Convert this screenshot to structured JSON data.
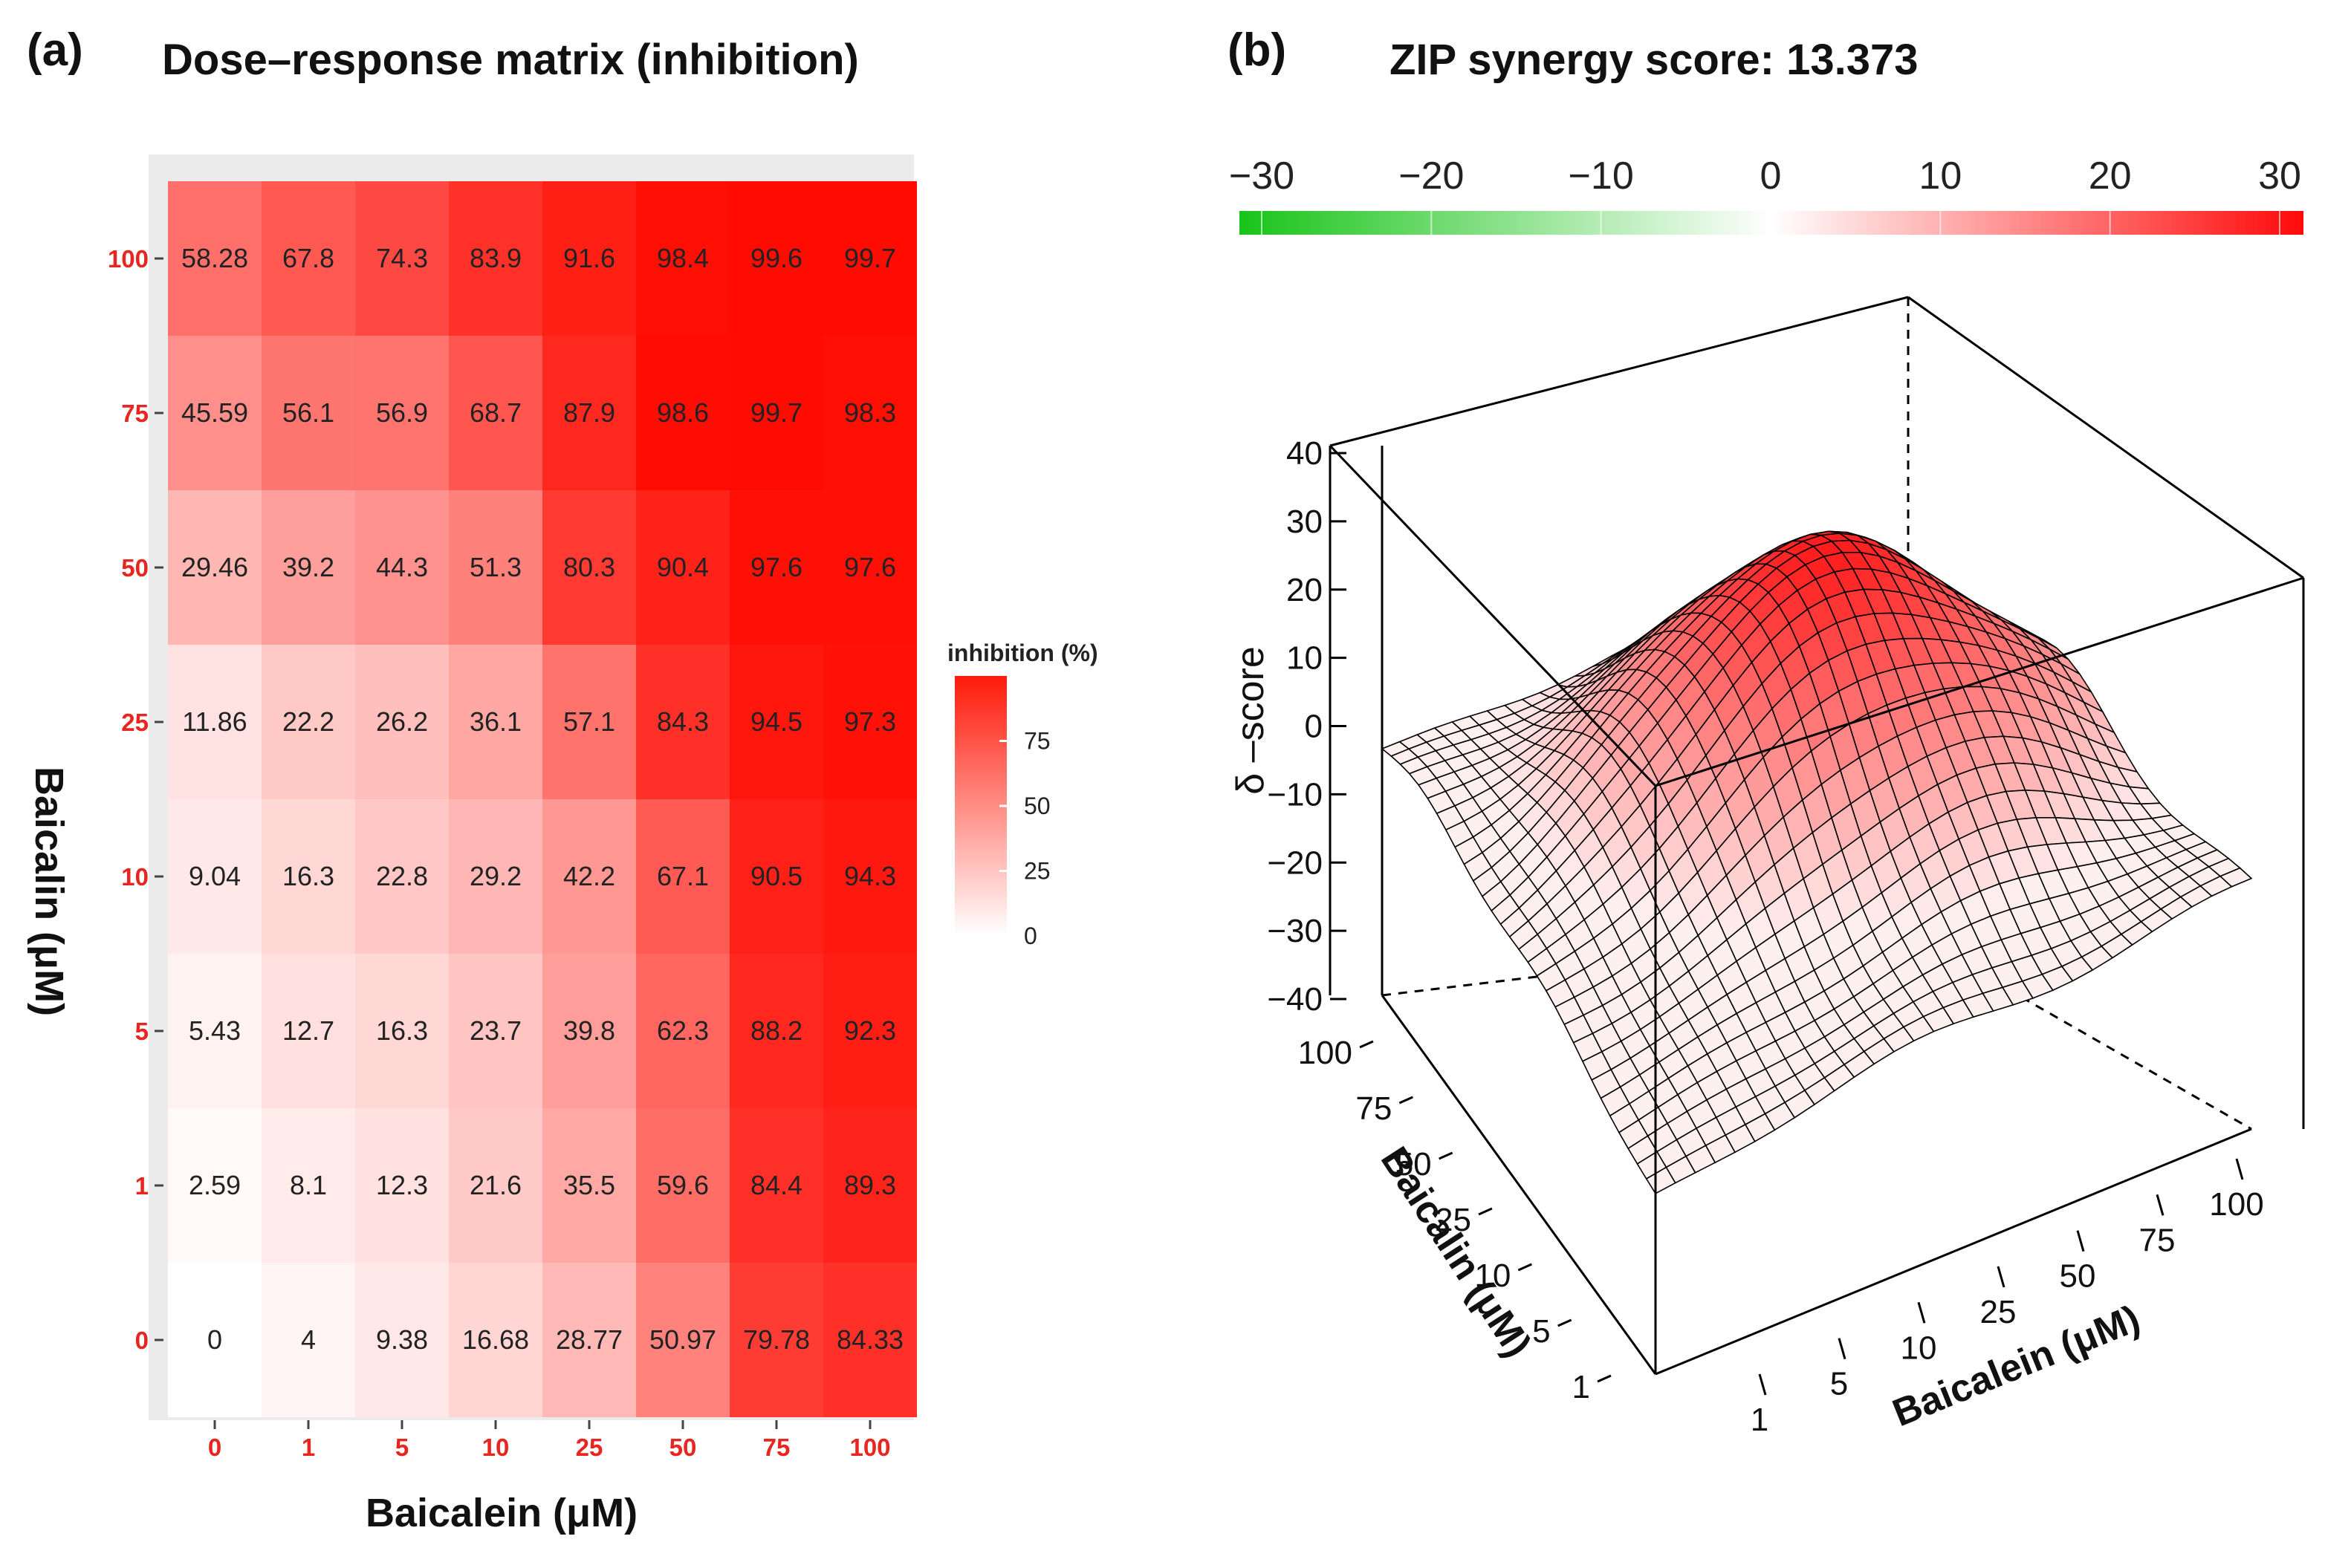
{
  "panels": {
    "a": {
      "letter": "(a)",
      "title": "Dose–response matrix (inhibition)"
    },
    "b": {
      "letter": "(b)",
      "title": "ZIP synergy score: 13.373"
    }
  },
  "colors": {
    "high": "#ff0000",
    "low": "#ffffff",
    "synergy": "#ff1a1a",
    "antagonism": "#19c419",
    "tick_label": "#e8251e"
  },
  "chart_data": [
    {
      "type": "heatmap",
      "title": "Dose–response matrix (inhibition)",
      "xlabel": "Baicalein (μM)",
      "ylabel": "Baicalin (μM)",
      "x_categories": [
        "0",
        "1",
        "5",
        "10",
        "25",
        "50",
        "75",
        "100"
      ],
      "y_categories": [
        "0",
        "1",
        "5",
        "10",
        "25",
        "50",
        "75",
        "100"
      ],
      "rows_top_to_bottom": [
        {
          "y": "100",
          "labels": [
            "58.28",
            "67.8",
            "74.3",
            "83.9",
            "91.6",
            "98.4",
            "99.6",
            "99.7"
          ]
        },
        {
          "y": "75",
          "labels": [
            "45.59",
            "56.1",
            "56.9",
            "68.7",
            "87.9",
            "98.6",
            "99.7",
            "98.3"
          ]
        },
        {
          "y": "50",
          "labels": [
            "29.46",
            "39.2",
            "44.3",
            "51.3",
            "80.3",
            "90.4",
            "97.6",
            "97.6"
          ]
        },
        {
          "y": "25",
          "labels": [
            "11.86",
            "22.2",
            "26.2",
            "36.1",
            "57.1",
            "84.3",
            "94.5",
            "97.3"
          ]
        },
        {
          "y": "10",
          "labels": [
            "9.04",
            "16.3",
            "22.8",
            "29.2",
            "42.2",
            "67.1",
            "90.5",
            "94.3"
          ]
        },
        {
          "y": "5",
          "labels": [
            "5.43",
            "12.7",
            "16.3",
            "23.7",
            "39.8",
            "62.3",
            "88.2",
            "92.3"
          ]
        },
        {
          "y": "1",
          "labels": [
            "2.59",
            "8.1",
            "12.3",
            "21.6",
            "35.5",
            "59.6",
            "84.4",
            "89.3"
          ]
        },
        {
          "y": "0",
          "labels": [
            "0",
            "4",
            "9.38",
            "16.68",
            "28.77",
            "50.97",
            "79.78",
            "84.33"
          ]
        }
      ],
      "legend": {
        "title": "inhibition (%)",
        "ticks": [
          "0",
          "25",
          "50",
          "75"
        ],
        "range": [
          0,
          100
        ]
      }
    },
    {
      "type": "surface",
      "title": "ZIP synergy score: 13.373",
      "synergy_score": 13.373,
      "xlabel": "Baicalein (μM)",
      "ylabel": "Baicalin (μM)",
      "zlabel": "δ –score",
      "x_categories": [
        "1",
        "5",
        "10",
        "25",
        "50",
        "75",
        "100"
      ],
      "y_categories": [
        "1",
        "5",
        "10",
        "25",
        "50",
        "75",
        "100"
      ],
      "z_ticks": [
        "40",
        "30",
        "20",
        "10",
        "0",
        "−10",
        "−20",
        "−30",
        "−40"
      ],
      "zlim": [
        -40,
        40
      ],
      "colorbar": {
        "ticks": [
          "−30",
          "−20",
          "−10",
          "0",
          "10",
          "20",
          "30"
        ],
        "range": [
          -30,
          30
        ]
      },
      "surface_peak": {
        "delta": 36,
        "baicalein": "75",
        "baicalin": "100"
      },
      "surface_low": {
        "delta": -10,
        "baicalein": "1",
        "baicalin": "1"
      }
    }
  ]
}
